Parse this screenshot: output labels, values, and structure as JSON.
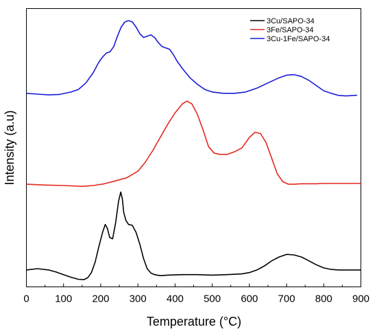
{
  "chart_data": {
    "type": "line",
    "xlabel": "Temperature (°C)",
    "ylabel": "Intensity (a.u)",
    "xlim": [
      0,
      900
    ],
    "ylim": [
      0,
      1
    ],
    "xticks": [
      "0",
      "100",
      "200",
      "300",
      "400",
      "500",
      "600",
      "700",
      "800",
      "900"
    ],
    "yticks_shown": false,
    "grid": false,
    "legend_position": "top-right",
    "series": [
      {
        "name": "3Cu/SAPO-34",
        "color": "#000000",
        "x": [
          0,
          30,
          60,
          80,
          100,
          120,
          140,
          155,
          165,
          175,
          185,
          195,
          205,
          212,
          218,
          224,
          232,
          240,
          248,
          254,
          258,
          262,
          268,
          275,
          285,
          295,
          305,
          315,
          325,
          335,
          345,
          360,
          380,
          420,
          460,
          500,
          540,
          580,
          600,
          620,
          640,
          660,
          680,
          700,
          720,
          740,
          760,
          780,
          800,
          820,
          840,
          860,
          880,
          900
        ],
        "y": [
          0.04,
          0.045,
          0.04,
          0.032,
          0.022,
          0.012,
          0.004,
          0.003,
          0.01,
          0.03,
          0.07,
          0.13,
          0.185,
          0.215,
          0.2,
          0.165,
          0.16,
          0.22,
          0.305,
          0.34,
          0.315,
          0.26,
          0.23,
          0.215,
          0.212,
          0.185,
          0.14,
          0.085,
          0.045,
          0.028,
          0.022,
          0.018,
          0.02,
          0.022,
          0.022,
          0.02,
          0.022,
          0.025,
          0.03,
          0.04,
          0.055,
          0.075,
          0.09,
          0.1,
          0.098,
          0.09,
          0.075,
          0.06,
          0.048,
          0.042,
          0.04,
          0.04,
          0.04,
          0.04
        ]
      },
      {
        "name": "3Fe/SAPO-34",
        "color": "#e4281e",
        "x": [
          0,
          50,
          100,
          150,
          180,
          210,
          240,
          270,
          300,
          320,
          340,
          360,
          380,
          400,
          420,
          432,
          445,
          460,
          475,
          490,
          505,
          520,
          540,
          560,
          580,
          600,
          615,
          630,
          645,
          660,
          675,
          690,
          705,
          720,
          740,
          760,
          780,
          800,
          850,
          900
        ],
        "y": [
          0.37,
          0.367,
          0.365,
          0.362,
          0.365,
          0.372,
          0.383,
          0.395,
          0.42,
          0.455,
          0.5,
          0.55,
          0.6,
          0.645,
          0.68,
          0.69,
          0.68,
          0.64,
          0.58,
          0.515,
          0.49,
          0.485,
          0.485,
          0.495,
          0.51,
          0.55,
          0.57,
          0.565,
          0.53,
          0.47,
          0.41,
          0.38,
          0.37,
          0.37,
          0.372,
          0.372,
          0.372,
          0.373,
          0.373,
          0.373
        ]
      },
      {
        "name": "3Cu-1Fe/SAPO-34",
        "color": "#1a1ad8",
        "x": [
          0,
          30,
          60,
          90,
          120,
          140,
          160,
          180,
          195,
          205,
          215,
          225,
          235,
          245,
          255,
          265,
          275,
          285,
          295,
          305,
          315,
          325,
          335,
          345,
          355,
          365,
          375,
          385,
          395,
          405,
          420,
          440,
          460,
          480,
          500,
          530,
          560,
          590,
          620,
          650,
          680,
          700,
          720,
          740,
          760,
          780,
          800,
          820,
          840,
          860,
          880,
          890
        ],
        "y": [
          0.72,
          0.717,
          0.714,
          0.716,
          0.725,
          0.735,
          0.76,
          0.8,
          0.84,
          0.86,
          0.875,
          0.88,
          0.9,
          0.94,
          0.975,
          0.995,
          1.0,
          0.995,
          0.975,
          0.95,
          0.935,
          0.94,
          0.945,
          0.935,
          0.915,
          0.9,
          0.895,
          0.89,
          0.87,
          0.845,
          0.815,
          0.78,
          0.755,
          0.735,
          0.725,
          0.72,
          0.72,
          0.725,
          0.74,
          0.76,
          0.78,
          0.79,
          0.792,
          0.785,
          0.77,
          0.75,
          0.73,
          0.72,
          0.712,
          0.71,
          0.712,
          0.713
        ]
      }
    ]
  }
}
